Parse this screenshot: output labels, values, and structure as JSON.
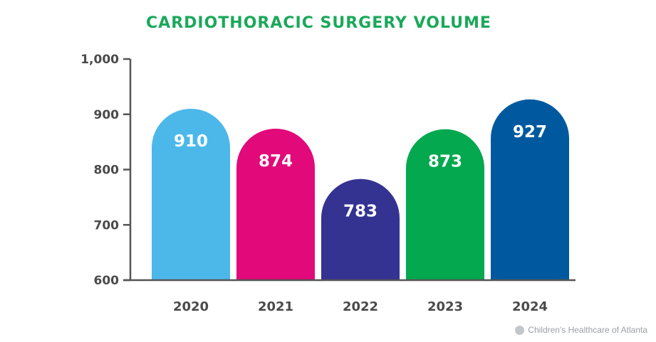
{
  "colors": {
    "title": "#1aa85a",
    "axis": "#555555",
    "tick_text": "#4a4a4a",
    "bar_text": "#ffffff",
    "bars": [
      "#4cb8e9",
      "#e2097a",
      "#343392",
      "#03a84f",
      "#00599f"
    ]
  },
  "credit": {
    "text": "Children's Healthcare of Atlanta",
    "logo_icon": "circle-logo-icon"
  },
  "chart_data": {
    "type": "bar",
    "title": "CARDIOTHORACIC SURGERY VOLUME",
    "xlabel": "",
    "ylabel": "",
    "categories": [
      "2020",
      "2021",
      "2022",
      "2023",
      "2024"
    ],
    "values": [
      910,
      874,
      783,
      873,
      927
    ],
    "value_labels": [
      "910",
      "874",
      "783",
      "873",
      "927"
    ],
    "ylim": [
      600,
      1000
    ],
    "yticks": [
      600,
      700,
      800,
      900,
      1000
    ],
    "ytick_labels": [
      "600",
      "700",
      "800",
      "900",
      "1,000"
    ],
    "grid": false,
    "legend": "none"
  }
}
